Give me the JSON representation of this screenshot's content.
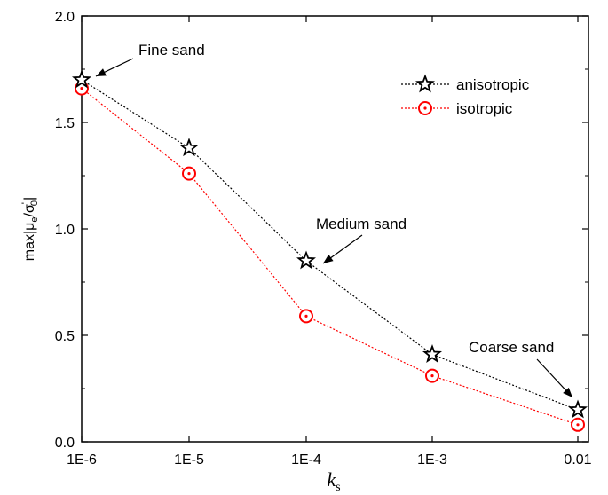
{
  "chart_data": {
    "type": "line",
    "x_scale": "log",
    "categories": [
      "1E-6",
      "1E-5",
      "1E-4",
      "1E-3",
      "0.01"
    ],
    "x": [
      1e-06,
      1e-05,
      0.0001,
      0.001,
      0.01
    ],
    "xlabel_main": "k",
    "xlabel_sub": "s",
    "ylabel": "max|μe/σ'0|",
    "ylim": [
      0.0,
      2.0
    ],
    "yticks": [
      "0.0",
      "0.5",
      "1.0",
      "1.5",
      "2.0"
    ],
    "grid": false,
    "legend_position": "top-right",
    "series": [
      {
        "name": "anisotropic",
        "values": [
          1.7,
          1.38,
          0.85,
          0.41,
          0.15
        ],
        "color": "#000000",
        "marker": "star"
      },
      {
        "name": "isotropic",
        "values": [
          1.66,
          1.26,
          0.59,
          0.31,
          0.08
        ],
        "color": "#ff0000",
        "marker": "circle-dot"
      }
    ],
    "annotations": [
      {
        "text": "Fine sand",
        "target_index": 0
      },
      {
        "text": "Medium sand",
        "target_index": 2
      },
      {
        "text": "Coarse sand",
        "target_index": 4
      }
    ]
  }
}
